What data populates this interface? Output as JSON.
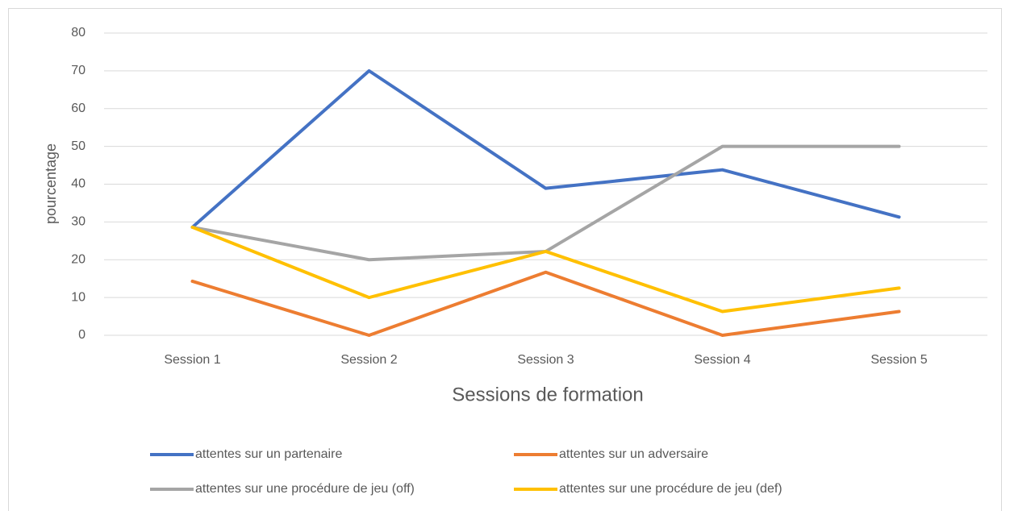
{
  "chart_data": {
    "type": "line",
    "x_label": "Sessions de formation",
    "y_label": "pourcentage",
    "categories": [
      "Session 1",
      "Session 2",
      "Session 3",
      "Session 4",
      "Session 5"
    ],
    "series": [
      {
        "name": "attentes sur un partenaire",
        "color": "#4472c4",
        "values": [
          28.6,
          70,
          38.9,
          43.8,
          31.3
        ]
      },
      {
        "name": "attentes sur un adversaire",
        "color": "#ed7d31",
        "values": [
          14.3,
          0,
          16.7,
          0,
          6.3
        ]
      },
      {
        "name": "attentes sur une procédure de jeu (off)",
        "color": "#a5a5a5",
        "values": [
          28.6,
          20,
          22.2,
          50,
          50
        ]
      },
      {
        "name": "attentes sur une procédure de jeu (def)",
        "color": "#ffc000",
        "values": [
          28.6,
          10,
          22.2,
          6.3,
          12.5
        ]
      }
    ],
    "ylim": [
      0,
      80
    ],
    "yticks": [
      0,
      10,
      20,
      30,
      40,
      50,
      60,
      70,
      80
    ],
    "grid": true,
    "legend": "bottom"
  }
}
